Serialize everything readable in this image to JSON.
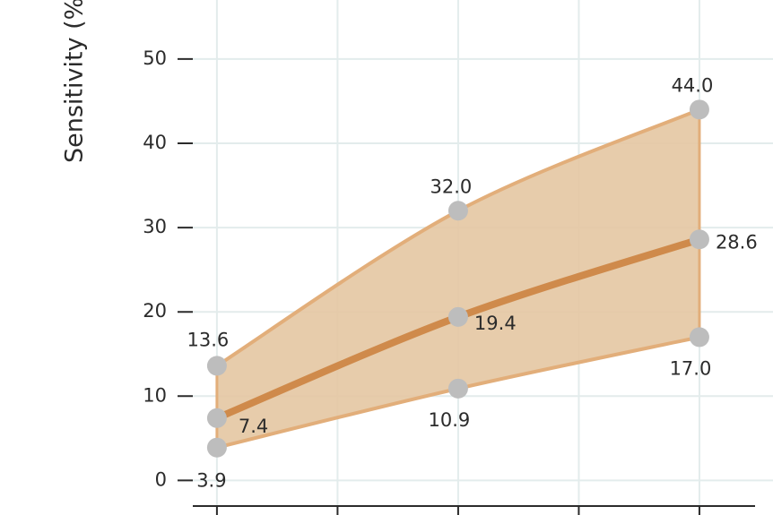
{
  "chart_data": {
    "type": "band-line",
    "y_label": "Sensitivity (%)",
    "x": [
      0,
      2,
      4
    ],
    "xlim": [
      -0.2,
      4.61
    ],
    "xticks": [
      0,
      1,
      2,
      3,
      4
    ],
    "ylim": [
      -4.1,
      57
    ],
    "yticks": [
      0,
      10,
      20,
      30,
      40,
      50
    ],
    "grid": true,
    "band_color": "#e4c6a2",
    "marker_color": "#bdbdbd",
    "series": [
      {
        "color": "#e2ae7a",
        "values": [
          3.9,
          10.9,
          17.0
        ],
        "value_labels": [
          "3.9",
          "10.9",
          "17.0"
        ]
      },
      {
        "color": "#cf8a4b",
        "values": [
          7.4,
          19.4,
          28.6
        ],
        "value_labels": [
          "7.4",
          "19.4",
          "28.6"
        ]
      },
      {
        "color": "#e2ae7a",
        "values": [
          13.6,
          32.0,
          44.0
        ],
        "value_labels": [
          "13.6",
          "32.0",
          "44.0"
        ]
      }
    ]
  }
}
